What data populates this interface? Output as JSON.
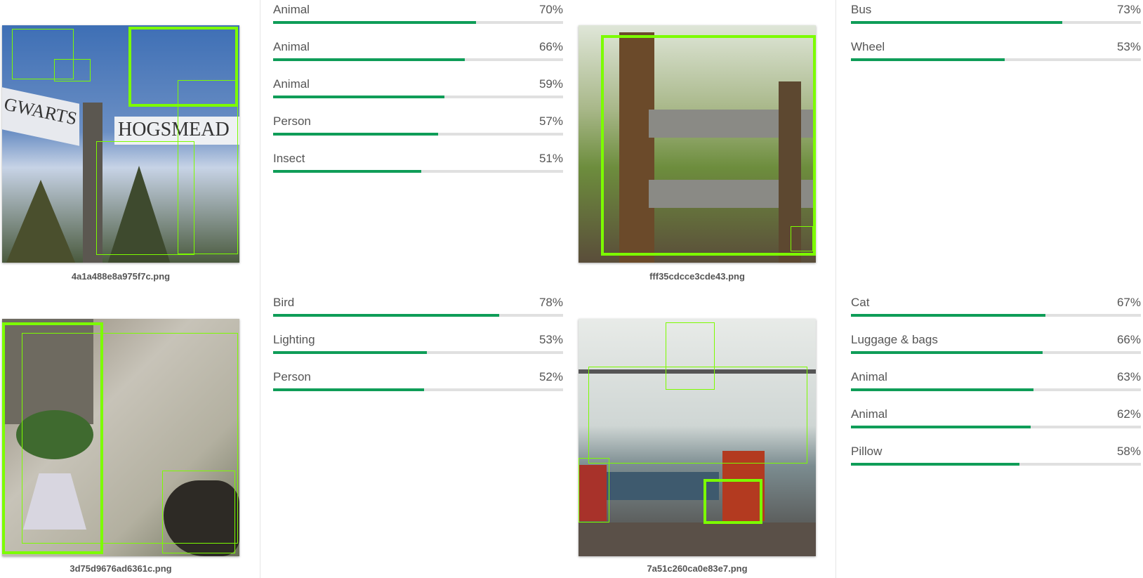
{
  "cards": [
    {
      "filename": "4a1a488e8a975f7c.png",
      "labels": [
        {
          "name": "Animal",
          "pct": "70%",
          "score": 0.7
        },
        {
          "name": "Animal",
          "pct": "66%",
          "score": 0.66
        },
        {
          "name": "Animal",
          "pct": "59%",
          "score": 0.59
        },
        {
          "name": "Person",
          "pct": "57%",
          "score": 0.57
        },
        {
          "name": "Insect",
          "pct": "51%",
          "score": 0.51
        }
      ]
    },
    {
      "filename": "fff35cdcce3cde43.png",
      "labels": [
        {
          "name": "Bus",
          "pct": "73%",
          "score": 0.73
        },
        {
          "name": "Wheel",
          "pct": "53%",
          "score": 0.53
        }
      ]
    },
    {
      "filename": "3d75d9676ad6361c.png",
      "labels": [
        {
          "name": "Bird",
          "pct": "78%",
          "score": 0.78
        },
        {
          "name": "Lighting",
          "pct": "53%",
          "score": 0.53
        },
        {
          "name": "Person",
          "pct": "52%",
          "score": 0.52
        }
      ]
    },
    {
      "filename": "7a51c260ca0e83e7.png",
      "labels": [
        {
          "name": "Cat",
          "pct": "67%",
          "score": 0.67
        },
        {
          "name": "Luggage & bags",
          "pct": "66%",
          "score": 0.66
        },
        {
          "name": "Animal",
          "pct": "63%",
          "score": 0.63
        },
        {
          "name": "Animal",
          "pct": "62%",
          "score": 0.62
        },
        {
          "name": "Pillow",
          "pct": "58%",
          "score": 0.58
        }
      ]
    }
  ],
  "scene_text": {
    "sign_left": "GWARTS",
    "sign_right": "HOGSMEAD"
  },
  "colors": {
    "bar_fill": "#0f9d58",
    "bar_track": "#e0e0e0",
    "bbox": "#7cfc00"
  }
}
